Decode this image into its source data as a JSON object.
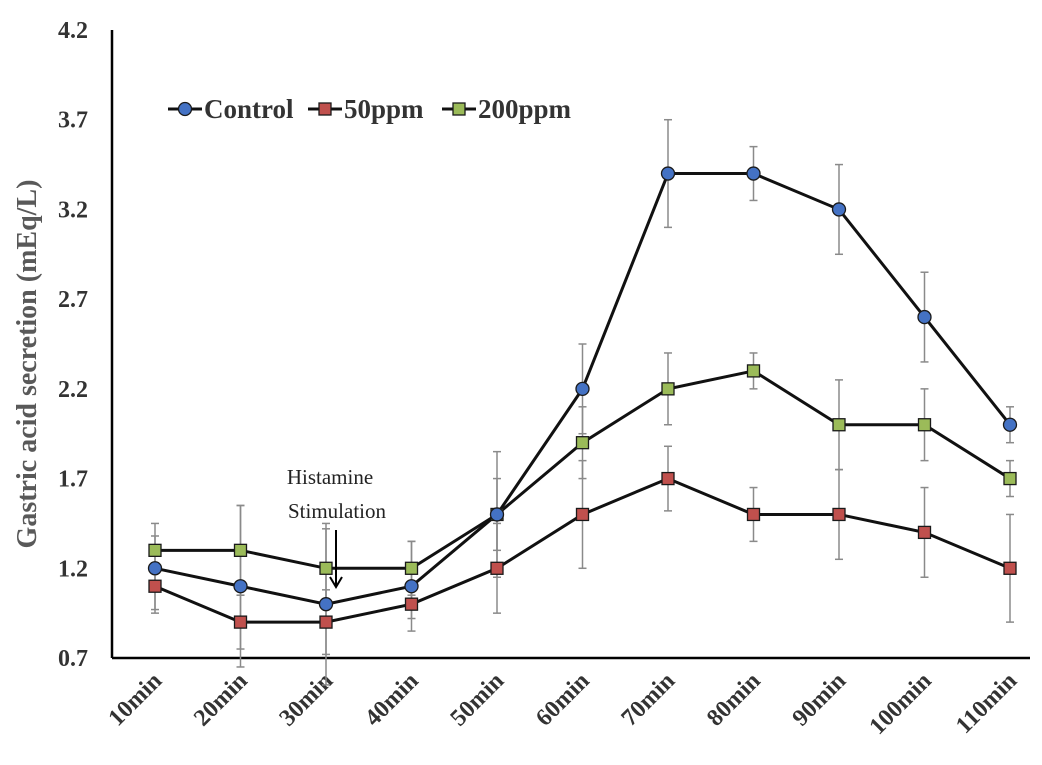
{
  "chart_data": {
    "type": "line",
    "title": "",
    "xlabel": "",
    "ylabel": "Gastric acid secretion (mEq/L)",
    "ylim": [
      0.7,
      4.2
    ],
    "yticks": [
      "0.7",
      "1.2",
      "1.7",
      "2.2",
      "2.7",
      "3.2",
      "3.7",
      "4.2"
    ],
    "categories": [
      "10min",
      "20min",
      "30min",
      "40min",
      "50min",
      "60min",
      "70min",
      "80min",
      "90min",
      "100min",
      "110min"
    ],
    "grid": false,
    "legend_position": "top-left",
    "annotation": {
      "lines": [
        "Histamine",
        "Stimulation"
      ],
      "category": "30min"
    },
    "series": [
      {
        "name": "Control",
        "marker": "circle",
        "color": "#4472C4",
        "values": [
          1.2,
          1.1,
          1.0,
          1.1,
          1.5,
          2.2,
          3.4,
          3.4,
          3.2,
          2.6,
          2.0
        ],
        "error": [
          0.25,
          0.45,
          0.45,
          0.25,
          0.35,
          0.25,
          0.3,
          0.15,
          0.25,
          0.25,
          0.1
        ]
      },
      {
        "name": "50ppm",
        "marker": "square",
        "color": "#C0504D",
        "values": [
          1.1,
          0.9,
          0.9,
          1.0,
          1.2,
          1.5,
          1.7,
          1.5,
          1.5,
          1.4,
          1.2
        ],
        "error": [
          0.13,
          0.15,
          0.18,
          0.08,
          0.25,
          0.3,
          0.18,
          0.15,
          0.25,
          0.25,
          0.3
        ]
      },
      {
        "name": "200ppm",
        "marker": "square",
        "color": "#9BBB59",
        "values": [
          1.3,
          1.3,
          1.2,
          1.2,
          1.5,
          1.9,
          2.2,
          2.3,
          2.0,
          2.0,
          1.7
        ],
        "error": [
          0.08,
          0.25,
          0.22,
          0.15,
          0.2,
          0.2,
          0.2,
          0.1,
          0.25,
          0.2,
          0.1
        ]
      }
    ]
  }
}
